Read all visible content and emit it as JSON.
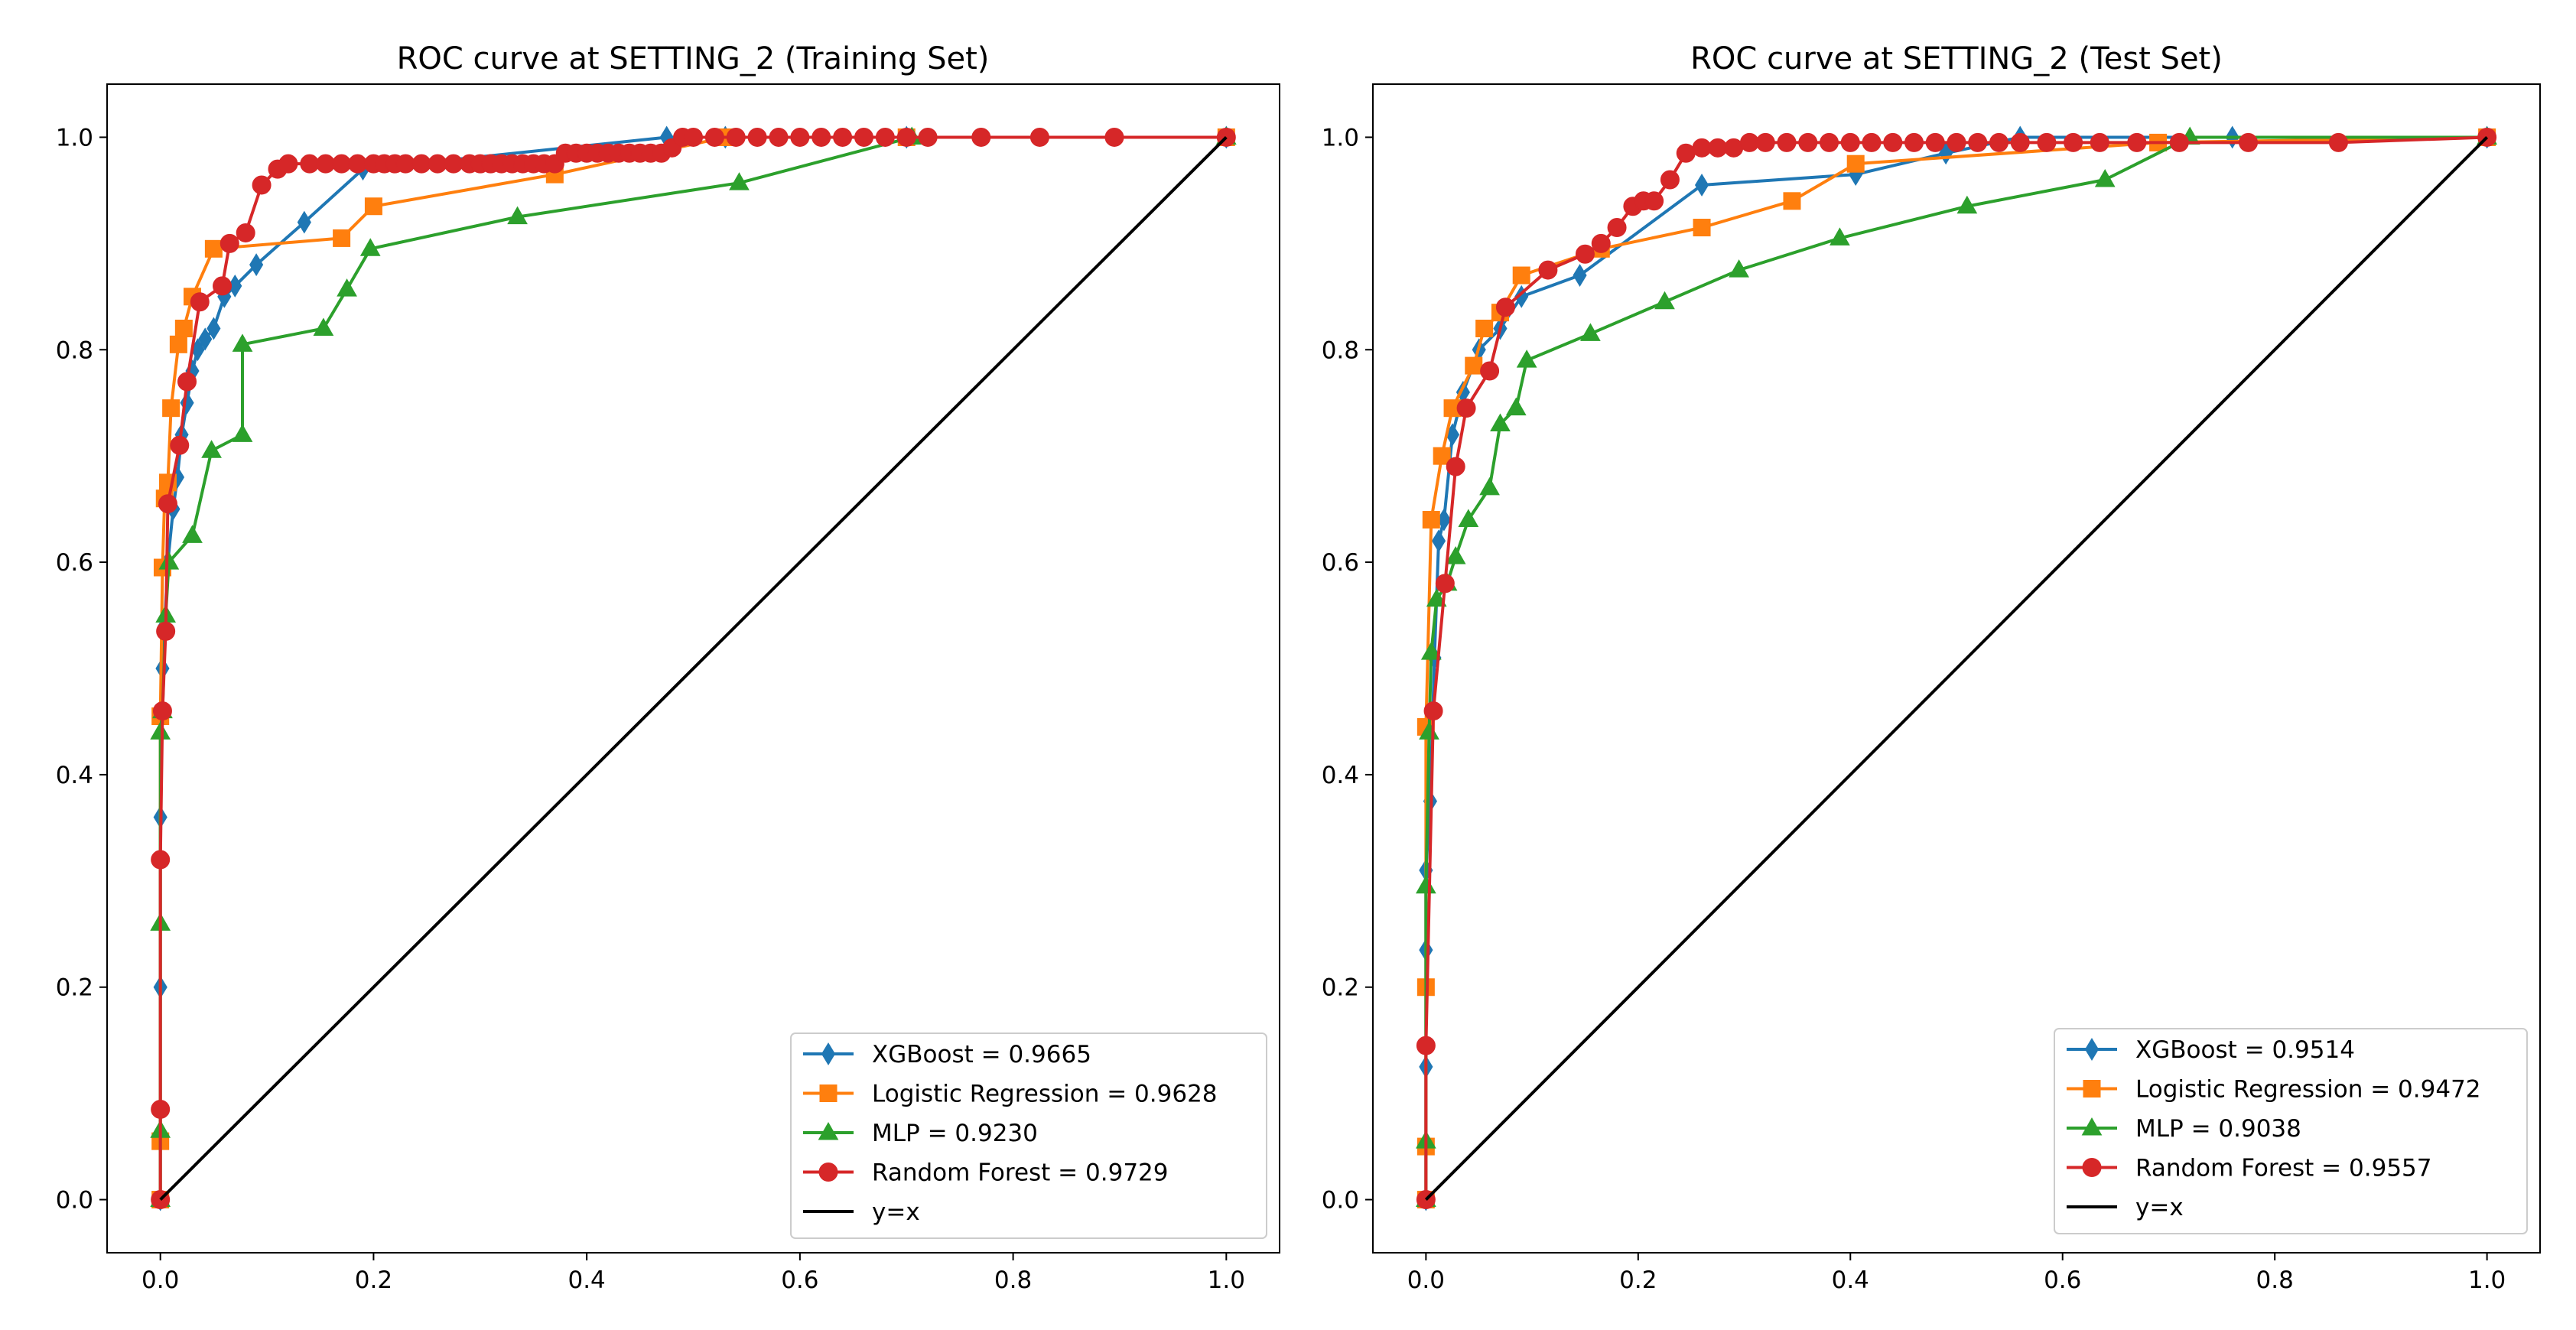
{
  "figure": {
    "background": "#ffffff"
  },
  "chart_data": [
    {
      "type": "line",
      "title": "ROC curve at SETTING_2 (Training Set)",
      "xlabel": "",
      "ylabel": "",
      "xlim": [
        -0.05,
        1.05
      ],
      "ylim": [
        -0.05,
        1.05
      ],
      "xticks": [
        0.0,
        0.2,
        0.4,
        0.6,
        0.8,
        1.0
      ],
      "yticks": [
        0.0,
        0.2,
        0.4,
        0.6,
        0.8,
        1.0
      ],
      "tick_labels_x": [
        "0.0",
        "0.2",
        "0.4",
        "0.6",
        "0.8",
        "1.0"
      ],
      "tick_labels_y": [
        "0.0",
        "0.2",
        "0.4",
        "0.6",
        "0.8",
        "1.0"
      ],
      "grid": false,
      "legend": {
        "position": "lower-right"
      },
      "series": [
        {
          "name": "XGBoost = 0.9665",
          "color": "#1f77b4",
          "marker": "thin-diamond",
          "x": [
            0,
            0,
            0,
            0,
            0.002,
            0.004,
            0.007,
            0.012,
            0.016,
            0.02,
            0.025,
            0.03,
            0.035,
            0.042,
            0.05,
            0.06,
            0.07,
            0.09,
            0.135,
            0.19,
            0.475,
            0.53,
            0.7,
            1.0
          ],
          "y": [
            0,
            0.063,
            0.2,
            0.36,
            0.5,
            0.54,
            0.6,
            0.65,
            0.68,
            0.72,
            0.75,
            0.78,
            0.8,
            0.81,
            0.82,
            0.85,
            0.86,
            0.88,
            0.92,
            0.97,
            1.0,
            1.0,
            1.0,
            1.0
          ]
        },
        {
          "name": "Logistic Regression = 0.9628",
          "color": "#ff7f0e",
          "marker": "square",
          "x": [
            0,
            0,
            0,
            0.002,
            0.004,
            0.007,
            0.01,
            0.017,
            0.022,
            0.03,
            0.05,
            0.17,
            0.2,
            0.37,
            0.53,
            0.7,
            1.0
          ],
          "y": [
            0,
            0.055,
            0.455,
            0.595,
            0.66,
            0.675,
            0.745,
            0.805,
            0.82,
            0.85,
            0.895,
            0.905,
            0.935,
            0.965,
            1.0,
            1.0,
            1.0
          ]
        },
        {
          "name": "MLP = 0.9230",
          "color": "#2ca02c",
          "marker": "triangle",
          "x": [
            0,
            0,
            0,
            0,
            0.002,
            0.005,
            0.008,
            0.03,
            0.048,
            0.077,
            0.077,
            0.153,
            0.175,
            0.197,
            0.335,
            0.543,
            0.705,
            1.0
          ],
          "y": [
            0,
            0.065,
            0.26,
            0.44,
            0.46,
            0.55,
            0.6,
            0.625,
            0.705,
            0.72,
            0.805,
            0.82,
            0.857,
            0.895,
            0.925,
            0.957,
            1.0,
            1.0
          ]
        },
        {
          "name": "Random Forest = 0.9729",
          "color": "#d62728",
          "marker": "circle",
          "x": [
            0,
            0,
            0,
            0.002,
            0.005,
            0.007,
            0.018,
            0.025,
            0.037,
            0.058,
            0.065,
            0.08,
            0.095,
            0.11,
            0.12,
            0.14,
            0.155,
            0.17,
            0.185,
            0.2,
            0.21,
            0.22,
            0.23,
            0.245,
            0.26,
            0.275,
            0.29,
            0.3,
            0.31,
            0.32,
            0.33,
            0.34,
            0.35,
            0.36,
            0.37,
            0.38,
            0.39,
            0.4,
            0.41,
            0.42,
            0.43,
            0.44,
            0.45,
            0.46,
            0.47,
            0.48,
            0.49,
            0.5,
            0.52,
            0.54,
            0.56,
            0.58,
            0.6,
            0.62,
            0.64,
            0.66,
            0.68,
            0.7,
            0.72,
            0.77,
            0.825,
            0.895,
            1.0
          ],
          "y": [
            0,
            0.085,
            0.32,
            0.46,
            0.535,
            0.655,
            0.71,
            0.77,
            0.845,
            0.86,
            0.9,
            0.91,
            0.955,
            0.97,
            0.975,
            0.975,
            0.975,
            0.975,
            0.975,
            0.975,
            0.975,
            0.975,
            0.975,
            0.975,
            0.975,
            0.975,
            0.975,
            0.975,
            0.975,
            0.975,
            0.975,
            0.975,
            0.975,
            0.975,
            0.975,
            0.985,
            0.985,
            0.985,
            0.985,
            0.985,
            0.985,
            0.985,
            0.985,
            0.985,
            0.985,
            0.99,
            1.0,
            1.0,
            1.0,
            1.0,
            1.0,
            1.0,
            1.0,
            1.0,
            1.0,
            1.0,
            1.0,
            1.0,
            1.0,
            1.0,
            1.0,
            1.0,
            1.0
          ]
        },
        {
          "name": "y=x",
          "color": "#000000",
          "marker": "none",
          "x": [
            0,
            1
          ],
          "y": [
            0,
            1
          ]
        }
      ]
    },
    {
      "type": "line",
      "title": "ROC curve at SETTING_2 (Test Set)",
      "xlabel": "",
      "ylabel": "",
      "xlim": [
        -0.05,
        1.05
      ],
      "ylim": [
        -0.05,
        1.05
      ],
      "xticks": [
        0.0,
        0.2,
        0.4,
        0.6,
        0.8,
        1.0
      ],
      "yticks": [
        0.0,
        0.2,
        0.4,
        0.6,
        0.8,
        1.0
      ],
      "tick_labels_x": [
        "0.0",
        "0.2",
        "0.4",
        "0.6",
        "0.8",
        "1.0"
      ],
      "tick_labels_y": [
        "0.0",
        "0.2",
        "0.4",
        "0.6",
        "0.8",
        "1.0"
      ],
      "grid": false,
      "legend": {
        "position": "lower-right"
      },
      "series": [
        {
          "name": "XGBoost = 0.9514",
          "color": "#1f77b4",
          "marker": "thin-diamond",
          "x": [
            0,
            0,
            0,
            0,
            0.004,
            0.008,
            0.012,
            0.017,
            0.025,
            0.035,
            0.05,
            0.07,
            0.09,
            0.145,
            0.26,
            0.405,
            0.49,
            0.56,
            0.76,
            1.0
          ],
          "y": [
            0,
            0.125,
            0.235,
            0.31,
            0.375,
            0.51,
            0.62,
            0.64,
            0.72,
            0.76,
            0.8,
            0.82,
            0.85,
            0.87,
            0.955,
            0.965,
            0.985,
            1.0,
            1.0,
            1.0
          ]
        },
        {
          "name": "Logistic Regression = 0.9472",
          "color": "#ff7f0e",
          "marker": "square",
          "x": [
            0,
            0,
            0,
            0,
            0.005,
            0.015,
            0.025,
            0.045,
            0.055,
            0.07,
            0.09,
            0.165,
            0.26,
            0.345,
            0.405,
            0.69,
            1.0
          ],
          "y": [
            0,
            0.05,
            0.2,
            0.445,
            0.64,
            0.7,
            0.745,
            0.785,
            0.82,
            0.835,
            0.87,
            0.895,
            0.915,
            0.94,
            0.975,
            0.995,
            1.0
          ]
        },
        {
          "name": "MLP = 0.9038",
          "color": "#2ca02c",
          "marker": "triangle",
          "x": [
            0,
            0,
            0,
            0.003,
            0.005,
            0.01,
            0.02,
            0.028,
            0.04,
            0.06,
            0.07,
            0.085,
            0.095,
            0.155,
            0.225,
            0.295,
            0.39,
            0.51,
            0.64,
            0.72,
            1.0
          ],
          "y": [
            0,
            0.055,
            0.295,
            0.44,
            0.515,
            0.565,
            0.58,
            0.605,
            0.64,
            0.67,
            0.73,
            0.745,
            0.79,
            0.815,
            0.845,
            0.875,
            0.905,
            0.935,
            0.96,
            1.0,
            1.0
          ]
        },
        {
          "name": "Random Forest = 0.9557",
          "color": "#d62728",
          "marker": "circle",
          "x": [
            0,
            0,
            0.007,
            0.018,
            0.028,
            0.038,
            0.06,
            0.075,
            0.115,
            0.15,
            0.165,
            0.18,
            0.195,
            0.205,
            0.215,
            0.23,
            0.245,
            0.26,
            0.275,
            0.29,
            0.305,
            0.32,
            0.34,
            0.36,
            0.38,
            0.4,
            0.42,
            0.44,
            0.46,
            0.48,
            0.5,
            0.52,
            0.54,
            0.56,
            0.585,
            0.61,
            0.635,
            0.67,
            0.71,
            0.775,
            0.86,
            1.0
          ],
          "y": [
            0,
            0.145,
            0.46,
            0.58,
            0.69,
            0.745,
            0.78,
            0.84,
            0.875,
            0.89,
            0.9,
            0.915,
            0.935,
            0.94,
            0.94,
            0.96,
            0.985,
            0.99,
            0.99,
            0.99,
            0.995,
            0.995,
            0.995,
            0.995,
            0.995,
            0.995,
            0.995,
            0.995,
            0.995,
            0.995,
            0.995,
            0.995,
            0.995,
            0.995,
            0.995,
            0.995,
            0.995,
            0.995,
            0.995,
            0.995,
            0.995,
            1.0
          ]
        },
        {
          "name": "y=x",
          "color": "#000000",
          "marker": "none",
          "x": [
            0,
            1
          ],
          "y": [
            0,
            1
          ]
        }
      ]
    }
  ]
}
